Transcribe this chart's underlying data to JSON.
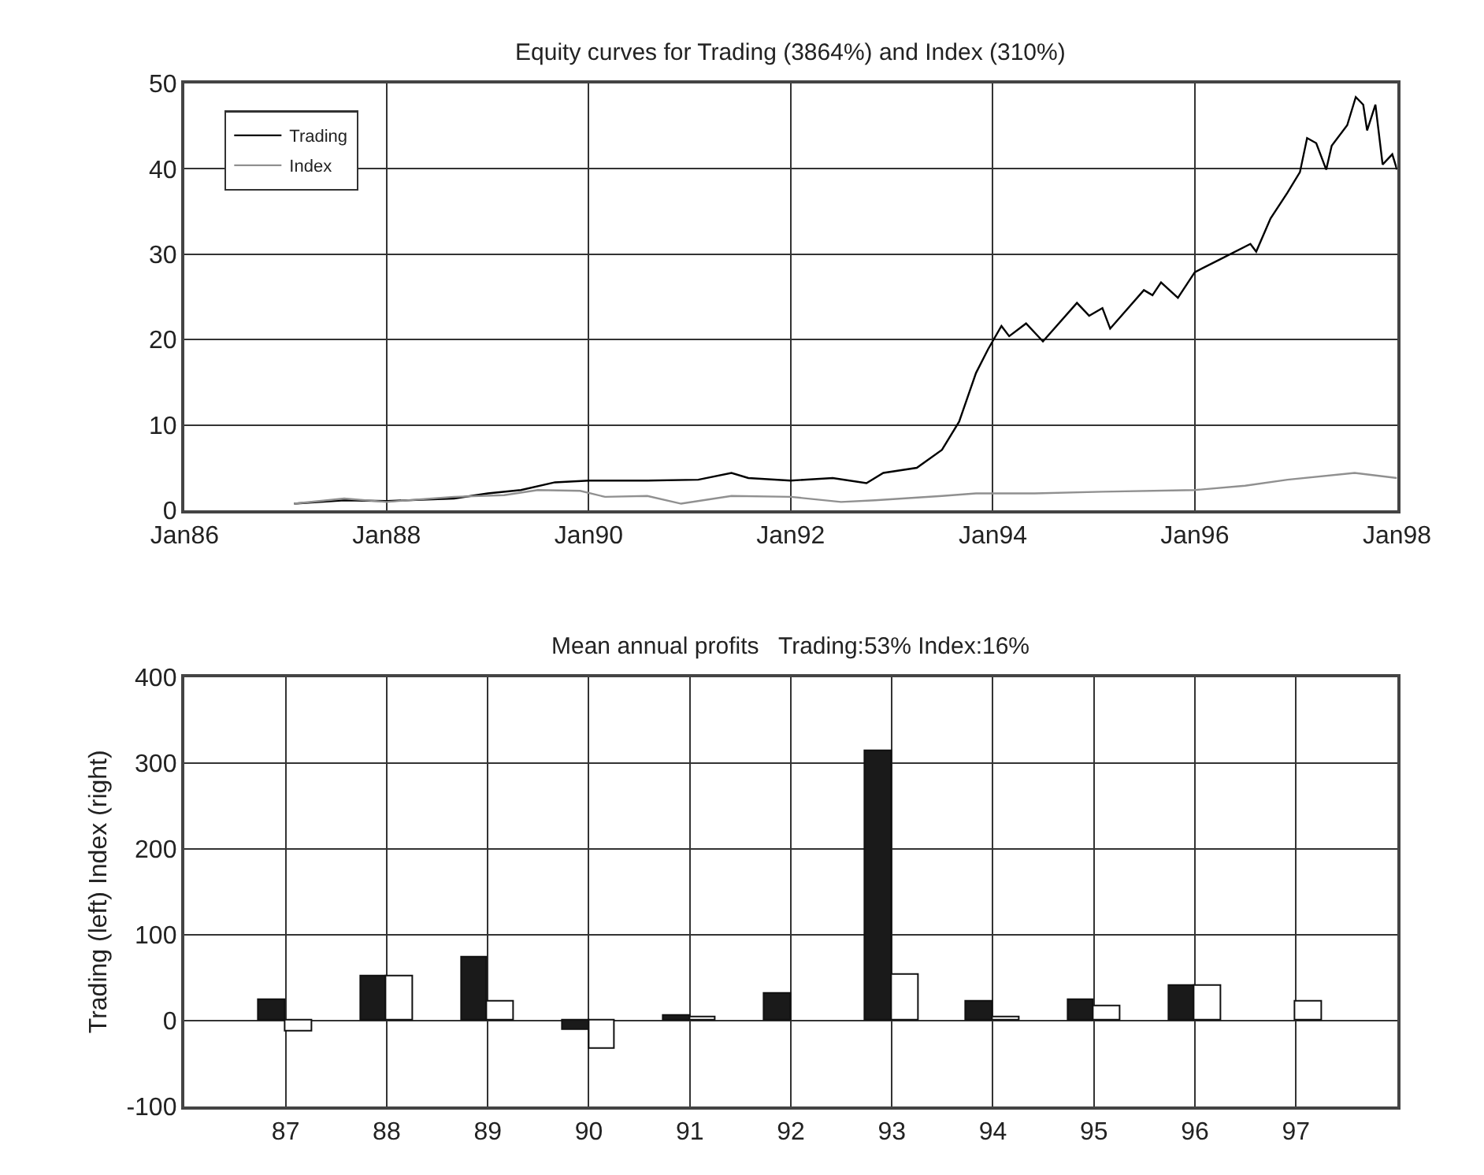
{
  "chart_data": [
    {
      "type": "line",
      "title": "Equity curves for Trading (3864%) and Index (310%)",
      "xlim": [
        "1986-01-01",
        "1998-01-01"
      ],
      "xticks": [
        {
          "value": "1986-01-01",
          "label": "Jan86"
        },
        {
          "value": "1988-01-01",
          "label": "Jan88"
        },
        {
          "value": "1990-01-01",
          "label": "Jan90"
        },
        {
          "value": "1992-01-01",
          "label": "Jan92"
        },
        {
          "value": "1994-01-01",
          "label": "Jan94"
        },
        {
          "value": "1996-01-01",
          "label": "Jan96"
        },
        {
          "value": "1998-01-01",
          "label": "Jan98"
        }
      ],
      "ylim": [
        0,
        50
      ],
      "yticks": [
        0,
        10,
        20,
        30,
        40,
        50
      ],
      "grid": true,
      "legend": "top left",
      "series": [
        {
          "name": "Trading",
          "color": "#000000",
          "x": [
            "1987-02",
            "1987-08",
            "1988-01",
            "1988-09",
            "1989-01",
            "1989-05",
            "1989-09",
            "1990-01",
            "1990-08",
            "1991-02",
            "1991-06",
            "1991-08",
            "1992-01",
            "1992-06",
            "1992-10",
            "1992-12",
            "1993-04",
            "1993-07",
            "1993-09",
            "1993-11",
            "1993-12-15",
            "1994-02",
            "1994-03",
            "1994-05",
            "1994-07",
            "1994-11",
            "1994-12-15",
            "1995-02",
            "1995-03",
            "1995-07",
            "1995-08",
            "1995-09",
            "1995-11",
            "1996-01",
            "1996-04",
            "1996-07-20",
            "1996-08-10",
            "1996-10",
            "1996-12",
            "1997-01-15",
            "1997-02-10",
            "1997-03-15",
            "1997-04-20",
            "1997-05-10",
            "1997-07-05",
            "1997-08-05",
            "1997-09-01",
            "1997-09-15",
            "1997-10-15",
            "1997-11-10",
            "1997-12-15",
            "1998-01-01"
          ],
          "values": [
            0.8,
            1.2,
            1.1,
            1.4,
            2.0,
            2.4,
            3.3,
            3.5,
            3.5,
            3.6,
            4.4,
            3.8,
            3.5,
            3.8,
            3.2,
            4.4,
            5.0,
            7.1,
            10.4,
            16.1,
            18.9,
            21.6,
            20.4,
            21.9,
            19.8,
            24.3,
            22.8,
            23.7,
            21.3,
            25.8,
            25.2,
            26.7,
            24.9,
            27.9,
            29.4,
            31.2,
            30.3,
            34.2,
            37.2,
            39.6,
            43.6,
            43.0,
            39.9,
            42.7,
            45.1,
            48.4,
            47.5,
            44.5,
            47.5,
            40.5,
            41.7,
            39.9
          ]
        },
        {
          "name": "Index",
          "color": "#909090",
          "x": [
            "1987-02",
            "1987-08",
            "1988-01",
            "1988-09",
            "1989-03",
            "1989-07",
            "1989-12",
            "1990-03",
            "1990-08",
            "1990-12",
            "1991-06",
            "1992-01",
            "1992-07",
            "1992-11",
            "1993-07",
            "1993-11",
            "1994-06",
            "1995-02",
            "1996-01",
            "1996-07",
            "1996-12",
            "1997-08",
            "1998-01"
          ],
          "values": [
            0.8,
            1.4,
            1.0,
            1.6,
            1.8,
            2.4,
            2.3,
            1.6,
            1.7,
            0.8,
            1.7,
            1.6,
            1.0,
            1.2,
            1.7,
            2.0,
            2.0,
            2.2,
            2.4,
            2.9,
            3.6,
            4.4,
            3.8
          ]
        }
      ]
    },
    {
      "type": "bar",
      "title": "Mean annual profits   Trading:53% Index:16%",
      "ylabel": "Trading (left) Index (right)",
      "categories": [
        "87",
        "88",
        "89",
        "90",
        "91",
        "92",
        "93",
        "94",
        "95",
        "96",
        "97"
      ],
      "ylim": [
        -100,
        400
      ],
      "yticks": [
        -100,
        0,
        100,
        200,
        300,
        400
      ],
      "grid": true,
      "series": [
        {
          "color": "#1a1a1a",
          "values": [
            24,
            52,
            73,
            -10,
            5,
            32,
            313,
            22,
            24,
            40,
            null
          ]
        },
        {
          "color": "#ffffff",
          "values": [
            -12,
            51,
            23,
            -32,
            3,
            null,
            54,
            3,
            17,
            41,
            23
          ]
        }
      ]
    }
  ]
}
